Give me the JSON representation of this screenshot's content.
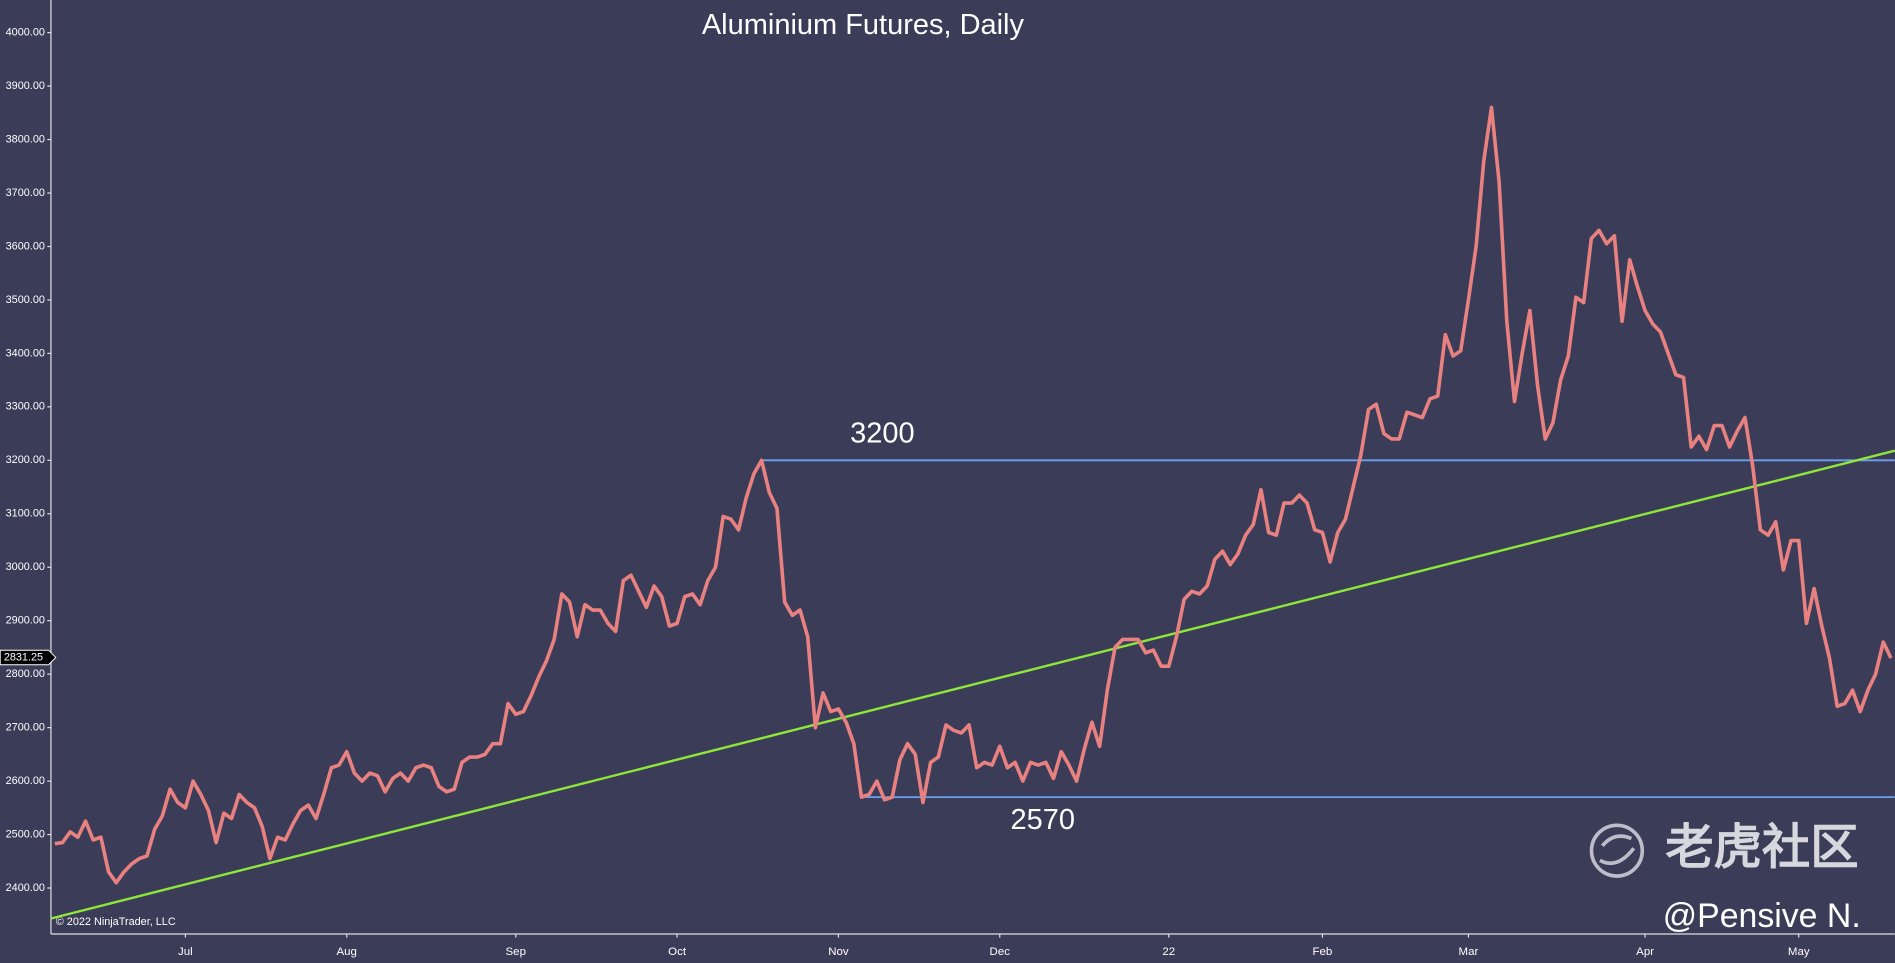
{
  "chart_data": {
    "type": "line",
    "title": "Aluminium Futures, Daily",
    "color": "#e8817f",
    "categories": [
      null,
      null,
      null,
      null,
      null,
      null,
      null,
      null,
      null,
      null,
      null,
      null,
      null,
      null,
      null,
      null,
      null,
      "Jul",
      null,
      null,
      null,
      null,
      null,
      null,
      null,
      null,
      null,
      null,
      null,
      null,
      null,
      null,
      null,
      null,
      null,
      null,
      null,
      null,
      "Aug",
      null,
      null,
      null,
      null,
      null,
      null,
      null,
      null,
      null,
      null,
      null,
      null,
      null,
      null,
      null,
      null,
      null,
      null,
      null,
      null,
      null,
      "Sep",
      null,
      null,
      null,
      null,
      null,
      null,
      null,
      null,
      null,
      null,
      null,
      null,
      null,
      null,
      null,
      null,
      null,
      null,
      null,
      null,
      "Oct",
      null,
      null,
      null,
      null,
      null,
      null,
      null,
      null,
      null,
      null,
      null,
      null,
      null,
      null,
      null,
      null,
      null,
      null,
      null,
      null,
      "Nov",
      null,
      null,
      null,
      null,
      null,
      null,
      null,
      null,
      null,
      null,
      null,
      null,
      null,
      null,
      null,
      null,
      null,
      null,
      null,
      null,
      "Dec",
      null,
      null,
      null,
      null,
      null,
      null,
      null,
      null,
      null,
      null,
      null,
      null,
      null,
      null,
      null,
      null,
      null,
      null,
      null,
      null,
      null,
      "22",
      null,
      null,
      null,
      null,
      null,
      null,
      null,
      null,
      null,
      null,
      null,
      null,
      null,
      null,
      null,
      null,
      null,
      null,
      null,
      "Feb",
      null,
      null,
      null,
      null,
      null,
      null,
      null,
      null,
      null,
      null,
      null,
      null,
      null,
      null,
      null,
      null,
      null,
      null,
      "Mar",
      null,
      null,
      null,
      null,
      null,
      null,
      null,
      null,
      null,
      null,
      null,
      null,
      null,
      null,
      null,
      null,
      null,
      null,
      null,
      null,
      null,
      null,
      "Apr",
      null,
      null,
      null,
      null,
      null,
      null,
      null,
      null,
      null,
      null,
      null,
      null,
      null,
      null,
      null,
      null,
      null,
      null,
      null,
      "May",
      null,
      null,
      null,
      null,
      null,
      null,
      null,
      null,
      null,
      null,
      null,
      null
    ],
    "values": [
      2483,
      2485,
      2505,
      2495,
      2525,
      2490,
      2495,
      2430,
      2410,
      2430,
      2445,
      2455,
      2460,
      2510,
      2535,
      2585,
      2560,
      2550,
      2600,
      2575,
      2545,
      2485,
      2540,
      2530,
      2575,
      2560,
      2550,
      2515,
      2455,
      2495,
      2490,
      2520,
      2545,
      2555,
      2530,
      2575,
      2625,
      2630,
      2655,
      2615,
      2600,
      2615,
      2610,
      2580,
      2605,
      2615,
      2600,
      2625,
      2630,
      2625,
      2590,
      2580,
      2585,
      2635,
      2645,
      2645,
      2650,
      2670,
      2670,
      2745,
      2725,
      2730,
      2760,
      2795,
      2825,
      2865,
      2950,
      2935,
      2870,
      2930,
      2920,
      2920,
      2895,
      2880,
      2975,
      2985,
      2955,
      2925,
      2965,
      2945,
      2890,
      2895,
      2945,
      2950,
      2930,
      2975,
      3000,
      3095,
      3090,
      3070,
      3130,
      3175,
      3200,
      3140,
      3110,
      2935,
      2910,
      2920,
      2870,
      2700,
      2765,
      2730,
      2735,
      2710,
      2670,
      2570,
      2575,
      2600,
      2565,
      2570,
      2640,
      2670,
      2650,
      2560,
      2635,
      2645,
      2705,
      2695,
      2690,
      2705,
      2625,
      2635,
      2630,
      2665,
      2625,
      2635,
      2600,
      2635,
      2630,
      2635,
      2605,
      2655,
      2630,
      2600,
      2660,
      2710,
      2665,
      2770,
      2850,
      2865,
      2865,
      2865,
      2840,
      2845,
      2815,
      2815,
      2870,
      2940,
      2955,
      2950,
      2965,
      3015,
      3030,
      3005,
      3025,
      3060,
      3080,
      3145,
      3065,
      3060,
      3120,
      3120,
      3135,
      3120,
      3070,
      3065,
      3010,
      3065,
      3090,
      3150,
      3210,
      3295,
      3305,
      3250,
      3240,
      3240,
      3290,
      3285,
      3280,
      3315,
      3320,
      3435,
      3395,
      3405,
      3500,
      3600,
      3760,
      3860,
      3720,
      3460,
      3310,
      3400,
      3480,
      3340,
      3240,
      3270,
      3350,
      3395,
      3505,
      3495,
      3615,
      3630,
      3605,
      3620,
      3460,
      3575,
      3525,
      3480,
      3455,
      3440,
      3400,
      3360,
      3355,
      3225,
      3245,
      3220,
      3265,
      3265,
      3225,
      3255,
      3280,
      3190,
      3070,
      3060,
      3085,
      2995,
      3050,
      3050,
      2895,
      2960,
      2890,
      2830,
      2740,
      2745,
      2770,
      2730,
      2770,
      2800,
      2860,
      2830
    ],
    "ylim": [
      2314,
      4061
    ],
    "yticks": [
      {
        "value": 2400,
        "label": "2400.00"
      },
      {
        "value": 2500,
        "label": "2500.00"
      },
      {
        "value": 2600,
        "label": "2600.00"
      },
      {
        "value": 2700,
        "label": "2700.00"
      },
      {
        "value": 2800,
        "label": "2800.00"
      },
      {
        "value": 2900,
        "label": "2900.00"
      },
      {
        "value": 3000,
        "label": "3000.00"
      },
      {
        "value": 3100,
        "label": "3100.00"
      },
      {
        "value": 3200,
        "label": "3200.00"
      },
      {
        "value": 3300,
        "label": "3300.00"
      },
      {
        "value": 3400,
        "label": "3400.00"
      },
      {
        "value": 3500,
        "label": "3500.00"
      },
      {
        "value": 3600,
        "label": "3600.00"
      },
      {
        "value": 3700,
        "label": "3700.00"
      },
      {
        "value": 3800,
        "label": "3800.00"
      },
      {
        "value": 3900,
        "label": "3900.00"
      },
      {
        "value": 4000,
        "label": "4000.00"
      }
    ],
    "grid": false,
    "last_price": 2831.25,
    "hlines": [
      3200,
      2570
    ],
    "hline_color": "#6aa0f0",
    "trendline": {
      "values": [
        2343,
        3218
      ],
      "color": "#8ee63a"
    },
    "copyright": "© 2022 NinjaTrader, LLC",
    "watermark": "老虎社区",
    "author": "@Pensive N."
  }
}
